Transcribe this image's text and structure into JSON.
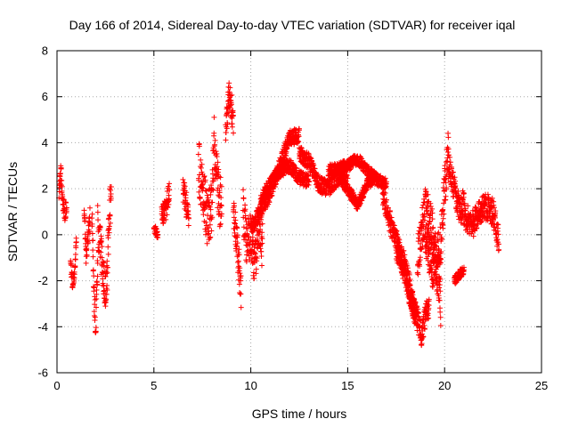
{
  "chart_data": {
    "type": "scatter",
    "title": "Day 166 of 2014, Sidereal Day-to-day VTEC variation (SDTVAR) for receiver iqal",
    "xlabel": "GPS time / hours",
    "ylabel": "SDTVAR / TECUs",
    "xlim": [
      0,
      25
    ],
    "ylim": [
      -6,
      8
    ],
    "xticks": [
      0,
      5,
      10,
      15,
      20,
      25
    ],
    "yticks": [
      -6,
      -4,
      -2,
      0,
      2,
      4,
      6,
      8
    ],
    "grid": true,
    "marker": "+",
    "color": "#ff0000",
    "series": [
      {
        "name": "SDTVAR",
        "segments": [
          {
            "from": 0.1,
            "to": 0.5,
            "pts": [
              [
                0.1,
                2.0
              ],
              [
                0.2,
                2.7
              ],
              [
                0.3,
                1.5
              ],
              [
                0.4,
                1.0
              ],
              [
                0.5,
                1.2
              ]
            ],
            "jitter": 0.4
          },
          {
            "from": 0.7,
            "to": 1.0,
            "pts": [
              [
                0.7,
                -1.2
              ],
              [
                0.8,
                -2.1
              ],
              [
                0.9,
                -1.8
              ],
              [
                1.0,
                -0.2
              ]
            ],
            "jitter": 0.25
          },
          {
            "from": 1.4,
            "to": 1.7,
            "pts": [
              [
                1.4,
                1.3
              ],
              [
                1.5,
                -1.0
              ],
              [
                1.7,
                0.8
              ]
            ],
            "jitter": 0.4
          },
          {
            "from": 1.8,
            "to": 2.1,
            "pts": [
              [
                1.8,
                1.2
              ],
              [
                1.9,
                -2.5
              ],
              [
                2.0,
                -4.0
              ],
              [
                2.1,
                -1.0
              ]
            ],
            "jitter": 0.6
          },
          {
            "from": 2.1,
            "to": 2.8,
            "pts": [
              [
                2.1,
                0.5
              ],
              [
                2.3,
                -1.0
              ],
              [
                2.5,
                -2.5
              ],
              [
                2.6,
                -1.5
              ],
              [
                2.7,
                1.0
              ],
              [
                2.8,
                1.5
              ]
            ],
            "jitter": 0.9
          },
          {
            "from": 5.0,
            "to": 5.2,
            "pts": [
              [
                5.0,
                0.3
              ],
              [
                5.2,
                0.0
              ]
            ],
            "jitter": 0.2
          },
          {
            "from": 5.4,
            "to": 5.8,
            "pts": [
              [
                5.4,
                0.7
              ],
              [
                5.6,
                1.1
              ],
              [
                5.8,
                1.8
              ]
            ],
            "jitter": 0.5
          },
          {
            "from": 6.5,
            "to": 6.8,
            "pts": [
              [
                6.5,
                2.0
              ],
              [
                6.8,
                0.8
              ]
            ],
            "jitter": 0.6
          },
          {
            "from": 7.3,
            "to": 8.5,
            "pts": [
              [
                7.3,
                3.0
              ],
              [
                7.6,
                1.5
              ],
              [
                7.8,
                0.5
              ],
              [
                8.0,
                1.5
              ],
              [
                8.1,
                4.0
              ],
              [
                8.3,
                2.0
              ],
              [
                8.5,
                1.0
              ]
            ],
            "jitter": 1.2
          },
          {
            "from": 8.7,
            "to": 9.1,
            "pts": [
              [
                8.7,
                4.5
              ],
              [
                8.9,
                6.2
              ],
              [
                9.1,
                5.0
              ]
            ],
            "jitter": 0.7
          },
          {
            "from": 9.1,
            "to": 9.5,
            "pts": [
              [
                9.1,
                1.0
              ],
              [
                9.3,
                -0.5
              ],
              [
                9.5,
                -2.5
              ]
            ],
            "jitter": 0.8
          },
          {
            "from": 9.6,
            "to": 10.6,
            "pts": [
              [
                9.6,
                1.2
              ],
              [
                9.8,
                -0.5
              ],
              [
                10.0,
                0.0
              ],
              [
                10.2,
                -1.5
              ],
              [
                10.4,
                0.5
              ],
              [
                10.6,
                -0.5
              ]
            ],
            "jitter": 1.0
          },
          {
            "from": 10.0,
            "to": 12.5,
            "pts": [
              [
                10.0,
                0.3
              ],
              [
                10.5,
                1.0
              ],
              [
                11.0,
                1.8
              ],
              [
                11.5,
                3.0
              ],
              [
                12.0,
                4.2
              ],
              [
                12.5,
                4.3
              ]
            ],
            "jitter": 0.35
          },
          {
            "from": 10.5,
            "to": 13.0,
            "pts": [
              [
                10.5,
                1.5
              ],
              [
                11.0,
                2.2
              ],
              [
                11.5,
                2.8
              ],
              [
                12.0,
                3.0
              ],
              [
                12.5,
                2.5
              ],
              [
                13.0,
                2.3
              ]
            ],
            "jitter": 0.3
          },
          {
            "from": 12.5,
            "to": 15.0,
            "pts": [
              [
                12.5,
                3.5
              ],
              [
                13.0,
                3.2
              ],
              [
                13.5,
                2.2
              ],
              [
                14.0,
                2.0
              ],
              [
                14.5,
                2.5
              ],
              [
                15.0,
                2.8
              ]
            ],
            "jitter": 0.35
          },
          {
            "from": 14.0,
            "to": 17.0,
            "pts": [
              [
                14.0,
                2.8
              ],
              [
                15.0,
                3.0
              ],
              [
                15.5,
                3.3
              ],
              [
                16.0,
                2.8
              ],
              [
                16.5,
                2.4
              ],
              [
                17.0,
                2.2
              ]
            ],
            "jitter": 0.25
          },
          {
            "from": 14.5,
            "to": 16.5,
            "pts": [
              [
                14.5,
                2.5
              ],
              [
                15.0,
                2.0
              ],
              [
                15.5,
                1.3
              ],
              [
                16.0,
                2.2
              ],
              [
                16.5,
                2.5
              ]
            ],
            "jitter": 0.25
          },
          {
            "from": 16.8,
            "to": 18.5,
            "pts": [
              [
                16.8,
                1.8
              ],
              [
                17.2,
                0.5
              ],
              [
                17.6,
                -0.5
              ],
              [
                18.0,
                -2.0
              ],
              [
                18.5,
                -3.5
              ]
            ],
            "jitter": 0.5
          },
          {
            "from": 17.5,
            "to": 19.2,
            "pts": [
              [
                17.5,
                -0.5
              ],
              [
                18.0,
                -1.5
              ],
              [
                18.5,
                -3.5
              ],
              [
                18.8,
                -4.3
              ],
              [
                19.2,
                -3.0
              ]
            ],
            "jitter": 0.6
          },
          {
            "from": 18.6,
            "to": 19.8,
            "pts": [
              [
                18.6,
                -1.0
              ],
              [
                19.0,
                1.0
              ],
              [
                19.3,
                0.5
              ],
              [
                19.6,
                -1.5
              ],
              [
                19.8,
                -3.0
              ]
            ],
            "jitter": 1.0
          },
          {
            "from": 19.0,
            "to": 20.2,
            "pts": [
              [
                19.0,
                0.0
              ],
              [
                19.4,
                -1.5
              ],
              [
                19.8,
                -0.5
              ],
              [
                20.0,
                2.0
              ],
              [
                20.2,
                3.8
              ]
            ],
            "jitter": 0.9
          },
          {
            "from": 20.2,
            "to": 21.0,
            "pts": [
              [
                20.2,
                3.0
              ],
              [
                20.5,
                2.0
              ],
              [
                20.8,
                1.0
              ],
              [
                21.0,
                1.5
              ]
            ],
            "jitter": 0.6
          },
          {
            "from": 20.5,
            "to": 21.0,
            "pts": [
              [
                20.5,
                -2.0
              ],
              [
                21.0,
                -1.5
              ]
            ],
            "jitter": 0.2
          },
          {
            "from": 21.0,
            "to": 22.8,
            "pts": [
              [
                21.0,
                0.8
              ],
              [
                21.5,
                0.5
              ],
              [
                22.0,
                1.3
              ],
              [
                22.5,
                1.0
              ],
              [
                22.8,
                -0.3
              ]
            ],
            "jitter": 0.6
          }
        ]
      }
    ]
  }
}
